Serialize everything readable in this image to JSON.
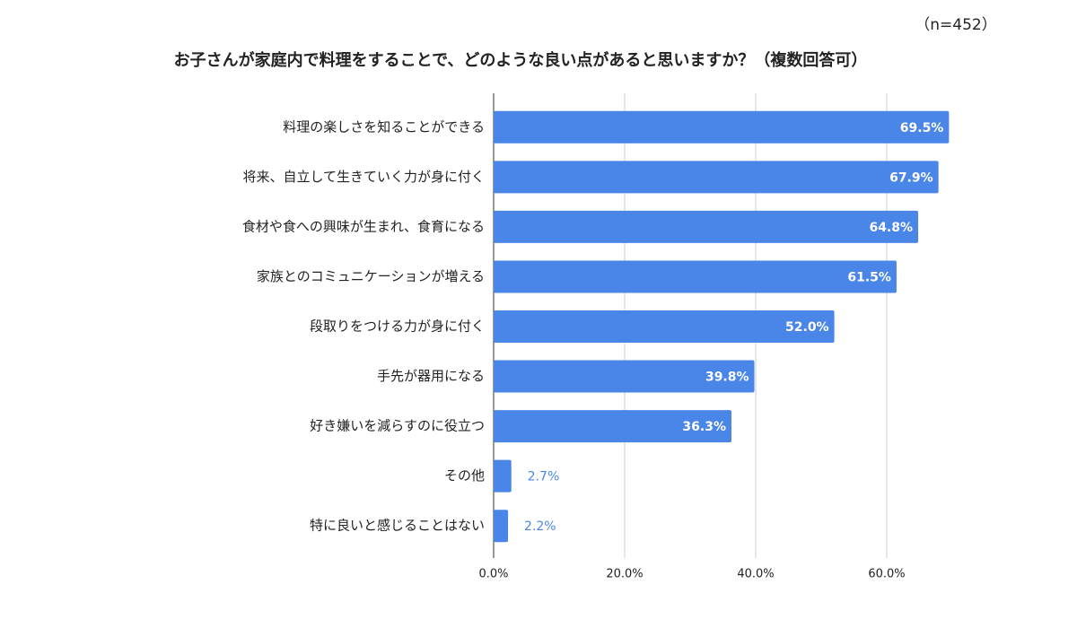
{
  "chart_data": {
    "type": "bar",
    "orientation": "horizontal",
    "title": "お子さんが家庭内で料理をすることで、どのような良い点があると思いますか？（複数回答可）",
    "subtitle": "（n=452）",
    "categories": [
      "料理の楽しさを知ることができる",
      "将来、自立して生きていく力が身に付く",
      "食材や食への興味が生まれ、食育になる",
      "家族とのコミュニケーションが増える",
      "段取りをつける力が身に付く",
      "手先が器用になる",
      "好き嫌いを減らすのに役立つ",
      "その他",
      "特に良いと感じることはない"
    ],
    "values": [
      69.5,
      67.9,
      64.8,
      61.5,
      52.0,
      39.8,
      36.3,
      2.7,
      2.2
    ],
    "value_labels": [
      "69.5%",
      "67.9%",
      "64.8%",
      "61.5%",
      "52.0%",
      "39.8%",
      "36.3%",
      "2.7%",
      "2.2%"
    ],
    "color": "#4a86e8",
    "xlim": [
      0,
      70
    ],
    "xticks": [
      {
        "value": 0,
        "label": "0.0%"
      },
      {
        "value": 20,
        "label": "20.0%"
      },
      {
        "value": 40,
        "label": "40.0%"
      },
      {
        "value": 60,
        "label": "60.0%"
      }
    ],
    "grid": true
  }
}
